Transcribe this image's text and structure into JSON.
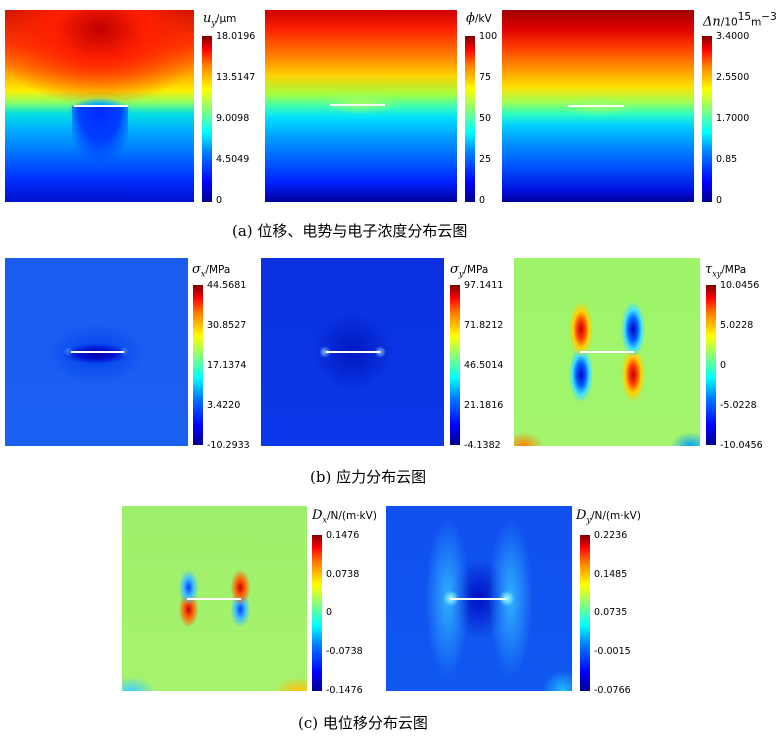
{
  "captions": {
    "a": "(a)  位移、电势与电子浓度分布云图",
    "b": "(b)  应力分布云图",
    "c": "(c)  电位移分布云图"
  },
  "panels": {
    "uy": {
      "symbol": "u",
      "sub": "y",
      "unit": "μm",
      "ticks": [
        "18.0196",
        "13.5147",
        "9.0098",
        "4.5049",
        "0"
      ]
    },
    "phi": {
      "symbol": "ϕ",
      "sub": "",
      "unit": "kV",
      "ticks": [
        "100",
        "75",
        "50",
        "25",
        "0"
      ]
    },
    "dn": {
      "symbol": "Δn",
      "sub": "",
      "unit": "10",
      "unit_sup": "15",
      "unit_tail": "m",
      "unit_tail_sup": "−3",
      "ticks": [
        "3.4000",
        "2.5500",
        "1.7000",
        "0.85",
        "0"
      ]
    },
    "sx": {
      "symbol": "σ",
      "sub": "x",
      "unit": "MPa",
      "ticks": [
        "44.5681",
        "30.8527",
        "17.1374",
        "3.4220",
        "-10.2933"
      ]
    },
    "sy": {
      "symbol": "σ",
      "sub": "y",
      "unit": "MPa",
      "ticks": [
        "97.1411",
        "71.8212",
        "46.5014",
        "21.1816",
        "-4.1382"
      ]
    },
    "txy": {
      "symbol": "τ",
      "sub": "xy",
      "unit": "MPa",
      "ticks": [
        "10.0456",
        "5.0228",
        "0",
        "-5.0228",
        "-10.0456"
      ]
    },
    "dx": {
      "symbol": "D",
      "sub": "x",
      "unit": "N/(m·kV)",
      "ticks": [
        "0.1476",
        "0.0738",
        "0",
        "-0.0738",
        "-0.1476"
      ]
    },
    "dy": {
      "symbol": "D",
      "sub": "y",
      "unit": "N/(m·kV)",
      "ticks": [
        "0.2236",
        "0.1485",
        "0.0735",
        "-0.0015",
        "-0.0766"
      ]
    }
  }
}
